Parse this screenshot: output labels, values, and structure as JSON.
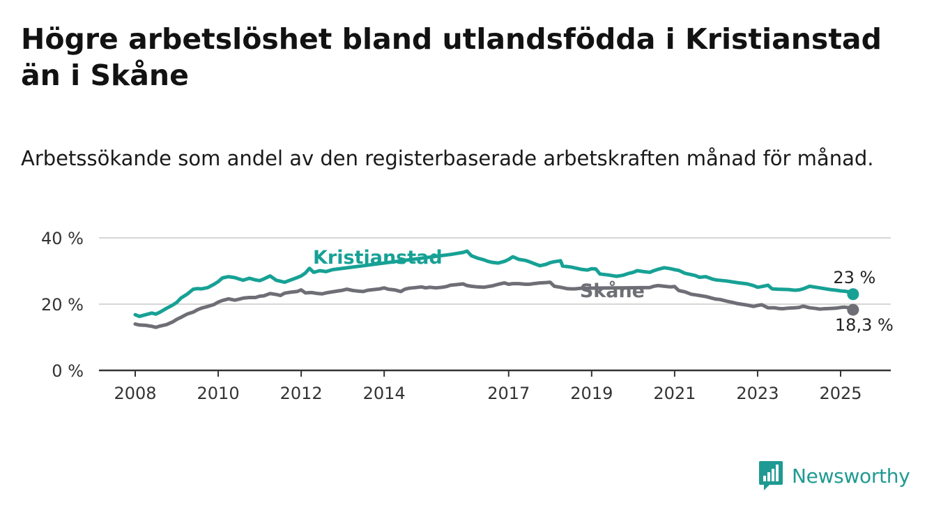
{
  "chart_data": {
    "type": "line",
    "title": "Högre arbetslöshet bland utlandsfödda i Kristianstad än i Skåne",
    "subtitle": "Arbetssökande som andel av den registerbaserade arbetskraften månad för månad.",
    "xlabel": "",
    "ylabel": "",
    "ylim": [
      0,
      40
    ],
    "xlim": [
      2008.0,
      2025.4
    ],
    "y_ticks": [
      {
        "value": 0,
        "label": "0 %"
      },
      {
        "value": 20,
        "label": "20 %"
      },
      {
        "value": 40,
        "label": "40 %"
      }
    ],
    "x_ticks": [
      {
        "value": 2008,
        "label": "2008"
      },
      {
        "value": 2010,
        "label": "2010"
      },
      {
        "value": 2012,
        "label": "2012"
      },
      {
        "value": 2014,
        "label": "2014"
      },
      {
        "value": 2017,
        "label": "2017"
      },
      {
        "value": 2019,
        "label": "2019"
      },
      {
        "value": 2021,
        "label": "2021"
      },
      {
        "value": 2023,
        "label": "2023"
      },
      {
        "value": 2025,
        "label": "2025"
      }
    ],
    "grid": true,
    "series": [
      {
        "name": "Kristianstad",
        "color": "#17a195",
        "end_label": "23 %",
        "points": [
          [
            2008.0,
            16.8
          ],
          [
            2008.1,
            16.3
          ],
          [
            2008.25,
            16.8
          ],
          [
            2008.4,
            17.3
          ],
          [
            2008.5,
            17.0
          ],
          [
            2008.6,
            17.6
          ],
          [
            2008.75,
            18.7
          ],
          [
            2008.9,
            19.7
          ],
          [
            2009.0,
            20.5
          ],
          [
            2009.1,
            21.8
          ],
          [
            2009.25,
            23.0
          ],
          [
            2009.4,
            24.5
          ],
          [
            2009.5,
            24.7
          ],
          [
            2009.6,
            24.6
          ],
          [
            2009.75,
            25.0
          ],
          [
            2009.9,
            26.0
          ],
          [
            2010.0,
            26.8
          ],
          [
            2010.1,
            27.9
          ],
          [
            2010.25,
            28.3
          ],
          [
            2010.4,
            28.0
          ],
          [
            2010.5,
            27.6
          ],
          [
            2010.6,
            27.2
          ],
          [
            2010.75,
            27.8
          ],
          [
            2010.9,
            27.3
          ],
          [
            2011.0,
            27.1
          ],
          [
            2011.1,
            27.6
          ],
          [
            2011.25,
            28.5
          ],
          [
            2011.4,
            27.2
          ],
          [
            2011.5,
            26.9
          ],
          [
            2011.6,
            26.6
          ],
          [
            2011.75,
            27.3
          ],
          [
            2011.9,
            28.0
          ],
          [
            2012.0,
            28.5
          ],
          [
            2012.1,
            29.4
          ],
          [
            2012.2,
            30.8
          ],
          [
            2012.3,
            29.6
          ],
          [
            2012.45,
            30.1
          ],
          [
            2012.6,
            29.8
          ],
          [
            2012.75,
            30.4
          ],
          [
            2015.6,
            35.0
          ],
          [
            2015.75,
            35.3
          ],
          [
            2015.9,
            35.6
          ],
          [
            2016.0,
            36.0
          ],
          [
            2016.1,
            34.6
          ],
          [
            2016.25,
            33.9
          ],
          [
            2016.4,
            33.4
          ],
          [
            2016.5,
            32.9
          ],
          [
            2016.6,
            32.6
          ],
          [
            2016.75,
            32.4
          ],
          [
            2016.9,
            32.9
          ],
          [
            2017.0,
            33.5
          ],
          [
            2017.1,
            34.3
          ],
          [
            2017.25,
            33.5
          ],
          [
            2017.4,
            33.2
          ],
          [
            2017.5,
            32.8
          ],
          [
            2017.6,
            32.3
          ],
          [
            2017.75,
            31.6
          ],
          [
            2017.9,
            32.0
          ],
          [
            2018.0,
            32.5
          ],
          [
            2018.1,
            32.8
          ],
          [
            2018.25,
            33.1
          ],
          [
            2018.3,
            31.5
          ],
          [
            2018.5,
            31.2
          ],
          [
            2018.75,
            30.5
          ],
          [
            2018.9,
            30.3
          ],
          [
            2019.0,
            30.7
          ],
          [
            2019.1,
            30.6
          ],
          [
            2019.2,
            29.1
          ],
          [
            2019.4,
            28.8
          ],
          [
            2019.6,
            28.4
          ],
          [
            2019.75,
            28.7
          ],
          [
            2019.9,
            29.3
          ],
          [
            2020.0,
            29.6
          ],
          [
            2020.1,
            30.1
          ],
          [
            2020.25,
            29.8
          ],
          [
            2020.4,
            29.6
          ],
          [
            2020.5,
            30.1
          ],
          [
            2020.6,
            30.5
          ],
          [
            2020.75,
            31.0
          ],
          [
            2020.9,
            30.7
          ],
          [
            2021.0,
            30.4
          ],
          [
            2021.1,
            30.2
          ],
          [
            2021.25,
            29.3
          ],
          [
            2021.4,
            28.9
          ],
          [
            2021.5,
            28.6
          ],
          [
            2021.6,
            28.1
          ],
          [
            2021.75,
            28.3
          ],
          [
            2021.9,
            27.6
          ],
          [
            2022.0,
            27.3
          ],
          [
            2022.25,
            27.0
          ],
          [
            2022.5,
            26.5
          ],
          [
            2022.75,
            26.1
          ],
          [
            2022.9,
            25.6
          ],
          [
            2023.0,
            25.1
          ],
          [
            2023.1,
            25.3
          ],
          [
            2023.25,
            25.7
          ],
          [
            2023.35,
            24.6
          ],
          [
            2023.5,
            24.5
          ],
          [
            2023.75,
            24.4
          ],
          [
            2023.9,
            24.2
          ],
          [
            2024.0,
            24.3
          ],
          [
            2024.1,
            24.6
          ],
          [
            2024.25,
            25.4
          ],
          [
            2024.5,
            24.9
          ],
          [
            2024.75,
            24.4
          ],
          [
            2024.9,
            24.2
          ],
          [
            2025.0,
            24.0
          ],
          [
            2025.1,
            23.9
          ],
          [
            2025.2,
            23.7
          ],
          [
            2025.3,
            23.0
          ]
        ]
      },
      {
        "name": "Skåne",
        "color": "#6e6e76",
        "end_label": "18,3 %",
        "points": [
          [
            2008.0,
            14.0
          ],
          [
            2008.1,
            13.7
          ],
          [
            2008.25,
            13.6
          ],
          [
            2008.4,
            13.3
          ],
          [
            2008.5,
            13.0
          ],
          [
            2008.6,
            13.4
          ],
          [
            2008.75,
            13.8
          ],
          [
            2008.9,
            14.6
          ],
          [
            2009.0,
            15.4
          ],
          [
            2009.1,
            16.0
          ],
          [
            2009.25,
            17.0
          ],
          [
            2009.4,
            17.6
          ],
          [
            2009.5,
            18.3
          ],
          [
            2009.6,
            18.8
          ],
          [
            2009.75,
            19.3
          ],
          [
            2009.9,
            19.9
          ],
          [
            2010.0,
            20.6
          ],
          [
            2010.1,
            21.1
          ],
          [
            2010.25,
            21.6
          ],
          [
            2010.4,
            21.2
          ],
          [
            2010.5,
            21.5
          ],
          [
            2010.6,
            21.8
          ],
          [
            2010.75,
            22.0
          ],
          [
            2010.9,
            22.0
          ],
          [
            2011.0,
            22.4
          ],
          [
            2011.1,
            22.5
          ],
          [
            2011.25,
            23.2
          ],
          [
            2011.4,
            22.9
          ],
          [
            2011.5,
            22.6
          ],
          [
            2011.6,
            23.3
          ],
          [
            2011.75,
            23.6
          ],
          [
            2011.9,
            23.8
          ],
          [
            2012.0,
            24.3
          ],
          [
            2012.1,
            23.4
          ],
          [
            2012.25,
            23.5
          ],
          [
            2012.4,
            23.2
          ],
          [
            2012.5,
            23.1
          ],
          [
            2012.6,
            23.4
          ],
          [
            2012.75,
            23.7
          ],
          [
            2012.9,
            24.0
          ],
          [
            2013.0,
            24.2
          ],
          [
            2013.1,
            24.5
          ],
          [
            2013.25,
            24.1
          ],
          [
            2013.4,
            23.9
          ],
          [
            2013.5,
            23.8
          ],
          [
            2013.6,
            24.2
          ],
          [
            2013.75,
            24.4
          ],
          [
            2013.9,
            24.6
          ],
          [
            2014.0,
            24.9
          ],
          [
            2014.1,
            24.5
          ],
          [
            2014.25,
            24.3
          ],
          [
            2014.4,
            23.8
          ],
          [
            2014.5,
            24.5
          ],
          [
            2014.6,
            24.8
          ],
          [
            2014.75,
            25.0
          ],
          [
            2014.9,
            25.2
          ],
          [
            2015.0,
            24.9
          ],
          [
            2015.1,
            25.1
          ],
          [
            2015.25,
            24.9
          ],
          [
            2015.4,
            25.1
          ],
          [
            2015.5,
            25.3
          ],
          [
            2015.6,
            25.7
          ],
          [
            2015.75,
            25.9
          ],
          [
            2015.9,
            26.1
          ],
          [
            2016.0,
            25.6
          ],
          [
            2016.1,
            25.4
          ],
          [
            2016.25,
            25.2
          ],
          [
            2016.4,
            25.1
          ],
          [
            2016.5,
            25.3
          ],
          [
            2016.6,
            25.5
          ],
          [
            2016.75,
            26.0
          ],
          [
            2016.9,
            26.4
          ],
          [
            2017.0,
            26.0
          ],
          [
            2017.1,
            26.2
          ],
          [
            2017.25,
            26.2
          ],
          [
            2017.4,
            26.0
          ],
          [
            2017.5,
            26.0
          ],
          [
            2017.6,
            26.2
          ],
          [
            2017.75,
            26.4
          ],
          [
            2017.9,
            26.5
          ],
          [
            2018.0,
            26.6
          ],
          [
            2018.1,
            25.4
          ],
          [
            2018.25,
            25.1
          ],
          [
            2018.4,
            24.7
          ],
          [
            2018.5,
            24.6
          ],
          [
            2018.6,
            24.6
          ],
          [
            2018.75,
            24.8
          ],
          [
            2020.4,
            25.0
          ],
          [
            2020.5,
            25.4
          ],
          [
            2020.6,
            25.6
          ],
          [
            2020.75,
            25.4
          ],
          [
            2020.9,
            25.2
          ],
          [
            2021.0,
            25.3
          ],
          [
            2021.1,
            24.1
          ],
          [
            2021.25,
            23.7
          ],
          [
            2021.4,
            23.0
          ],
          [
            2021.5,
            22.8
          ],
          [
            2021.6,
            22.6
          ],
          [
            2021.75,
            22.3
          ],
          [
            2021.9,
            21.8
          ],
          [
            2022.0,
            21.5
          ],
          [
            2022.1,
            21.4
          ],
          [
            2022.25,
            20.9
          ],
          [
            2022.4,
            20.5
          ],
          [
            2022.5,
            20.2
          ],
          [
            2022.6,
            20.0
          ],
          [
            2022.75,
            19.7
          ],
          [
            2022.9,
            19.3
          ],
          [
            2023.0,
            19.6
          ],
          [
            2023.1,
            19.8
          ],
          [
            2023.25,
            18.9
          ],
          [
            2023.4,
            18.9
          ],
          [
            2023.5,
            18.7
          ],
          [
            2023.6,
            18.6
          ],
          [
            2023.75,
            18.8
          ],
          [
            2023.9,
            18.9
          ],
          [
            2024.0,
            19.0
          ],
          [
            2024.1,
            19.4
          ],
          [
            2024.25,
            18.9
          ],
          [
            2024.4,
            18.7
          ],
          [
            2024.5,
            18.5
          ],
          [
            2024.6,
            18.6
          ],
          [
            2024.75,
            18.7
          ],
          [
            2024.9,
            18.8
          ],
          [
            2025.0,
            19.0
          ],
          [
            2025.1,
            19.1
          ],
          [
            2025.2,
            18.9
          ],
          [
            2025.3,
            18.3
          ]
        ]
      }
    ]
  },
  "brand": {
    "name": "Newsworthy",
    "color": "#1f9a92"
  }
}
